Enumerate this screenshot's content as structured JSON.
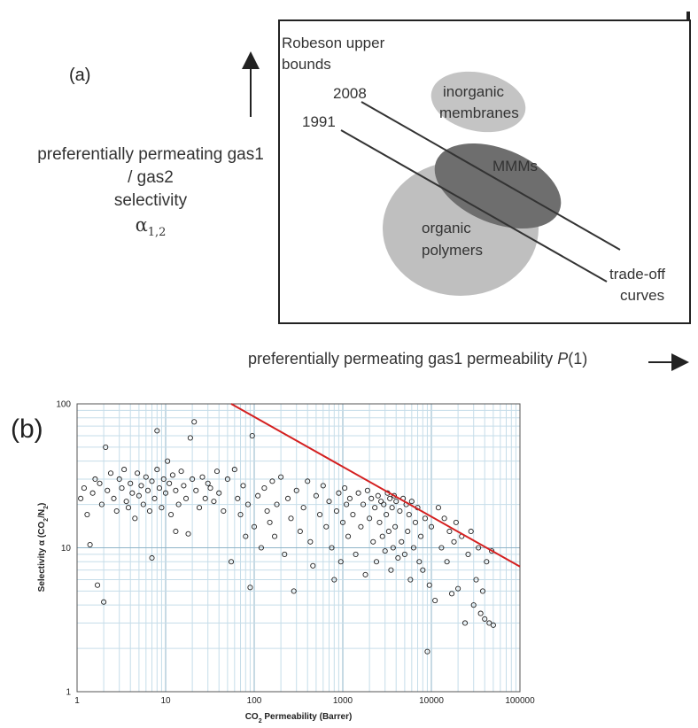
{
  "panel_a": {
    "label": "(a)",
    "ylabel_lines": [
      "preferentially permeating gas1",
      "/ gas2",
      "selectivity",
      "α",
      "1,2"
    ],
    "xlabel_prefix": "preferentially permeating gas1 permeability ",
    "xlabel_var": "P",
    "xlabel_suffix": "(1)",
    "bounds_title_1": "Robeson upper",
    "bounds_title_2": "bounds",
    "year_2008": "2008",
    "year_1991": "1991",
    "region_inorganic_1": "inorganic",
    "region_inorganic_2": "membranes",
    "region_mmm": "MMMs",
    "region_organic_1": "organic",
    "region_organic_2": "polymers",
    "tradeoff_1": "trade-off",
    "tradeoff_2": "curves",
    "colors": {
      "inorganic": "#c4c4c4",
      "mmm": "#6e6e6e",
      "organic": "#bfbfbf"
    }
  },
  "panel_b": {
    "label": "(b)"
  },
  "chart_data": {
    "type": "scatter",
    "xlabel_main": "CO",
    "xlabel_sub": "2",
    "xlabel_rest": " Permeability (Barrer)",
    "ylabel_main": "Selectivity α (CO",
    "ylabel_sub1": "2",
    "ylabel_mid": "/N",
    "ylabel_sub2": "2",
    "ylabel_end": ")",
    "x_scale": "log",
    "y_scale": "log",
    "xlim": [
      1,
      100000
    ],
    "ylim": [
      1,
      100
    ],
    "x_ticks": [
      "1",
      "10",
      "100",
      "1000",
      "10000",
      "100000"
    ],
    "y_ticks": [
      "1",
      "10",
      "100"
    ],
    "grid": true,
    "upper_bound_line": {
      "color": "#d42020",
      "points": [
        [
          55,
          100
        ],
        [
          100000,
          7.4
        ]
      ]
    },
    "points": [
      [
        1.1,
        22
      ],
      [
        1.2,
        26
      ],
      [
        1.3,
        17
      ],
      [
        1.4,
        10.5
      ],
      [
        1.5,
        24
      ],
      [
        1.6,
        30
      ],
      [
        1.7,
        5.5
      ],
      [
        1.8,
        28
      ],
      [
        1.9,
        20
      ],
      [
        2.0,
        4.2
      ],
      [
        2.1,
        50
      ],
      [
        2.2,
        25
      ],
      [
        2.4,
        33
      ],
      [
        2.6,
        22
      ],
      [
        2.8,
        18
      ],
      [
        3.0,
        30
      ],
      [
        3.2,
        26
      ],
      [
        3.4,
        35
      ],
      [
        3.6,
        21
      ],
      [
        3.8,
        19
      ],
      [
        4.0,
        28
      ],
      [
        4.2,
        24
      ],
      [
        4.5,
        16
      ],
      [
        4.8,
        33
      ],
      [
        5.0,
        23
      ],
      [
        5.3,
        27
      ],
      [
        5.6,
        20
      ],
      [
        6.0,
        31
      ],
      [
        6.3,
        25
      ],
      [
        6.6,
        18
      ],
      [
        7.0,
        8.5
      ],
      [
        7.0,
        29
      ],
      [
        7.5,
        22
      ],
      [
        8.0,
        65
      ],
      [
        8.0,
        35
      ],
      [
        8.5,
        26
      ],
      [
        9.0,
        19
      ],
      [
        9.5,
        30
      ],
      [
        10,
        24
      ],
      [
        10.5,
        40
      ],
      [
        11,
        28
      ],
      [
        11.5,
        17
      ],
      [
        12,
        32
      ],
      [
        13,
        13
      ],
      [
        13,
        25
      ],
      [
        14,
        20
      ],
      [
        15,
        34
      ],
      [
        16,
        27
      ],
      [
        17,
        22
      ],
      [
        18,
        12.5
      ],
      [
        19,
        58
      ],
      [
        20,
        30
      ],
      [
        21,
        75
      ],
      [
        22,
        25
      ],
      [
        24,
        19
      ],
      [
        26,
        31
      ],
      [
        28,
        22
      ],
      [
        30,
        28
      ],
      [
        32,
        26
      ],
      [
        35,
        21
      ],
      [
        38,
        34
      ],
      [
        40,
        24
      ],
      [
        45,
        18
      ],
      [
        50,
        30
      ],
      [
        55,
        8
      ],
      [
        60,
        35
      ],
      [
        65,
        22
      ],
      [
        70,
        17
      ],
      [
        75,
        27
      ],
      [
        80,
        12
      ],
      [
        85,
        20
      ],
      [
        90,
        5.3
      ],
      [
        95,
        60
      ],
      [
        100,
        14
      ],
      [
        110,
        23
      ],
      [
        120,
        10
      ],
      [
        130,
        26
      ],
      [
        140,
        18
      ],
      [
        150,
        15
      ],
      [
        160,
        29
      ],
      [
        170,
        12
      ],
      [
        180,
        20
      ],
      [
        200,
        31
      ],
      [
        220,
        9
      ],
      [
        240,
        22
      ],
      [
        260,
        16
      ],
      [
        280,
        5
      ],
      [
        300,
        25
      ],
      [
        330,
        13
      ],
      [
        360,
        19
      ],
      [
        400,
        29
      ],
      [
        430,
        11
      ],
      [
        460,
        7.5
      ],
      [
        500,
        23
      ],
      [
        550,
        17
      ],
      [
        600,
        27
      ],
      [
        650,
        14
      ],
      [
        700,
        21
      ],
      [
        750,
        10
      ],
      [
        800,
        6
      ],
      [
        850,
        18
      ],
      [
        900,
        24
      ],
      [
        950,
        8
      ],
      [
        1000,
        15
      ],
      [
        1050,
        26
      ],
      [
        1100,
        20
      ],
      [
        1150,
        12
      ],
      [
        1200,
        22
      ],
      [
        1300,
        17
      ],
      [
        1400,
        9
      ],
      [
        1500,
        24
      ],
      [
        1600,
        14
      ],
      [
        1700,
        20
      ],
      [
        1800,
        6.5
      ],
      [
        1900,
        25
      ],
      [
        2000,
        16
      ],
      [
        2100,
        22
      ],
      [
        2200,
        11
      ],
      [
        2300,
        19
      ],
      [
        2400,
        8
      ],
      [
        2500,
        23
      ],
      [
        2600,
        15
      ],
      [
        2700,
        21
      ],
      [
        2800,
        12
      ],
      [
        2900,
        20
      ],
      [
        3000,
        9.5
      ],
      [
        3100,
        17
      ],
      [
        3200,
        24
      ],
      [
        3300,
        13
      ],
      [
        3400,
        22
      ],
      [
        3500,
        7
      ],
      [
        3600,
        19
      ],
      [
        3700,
        10
      ],
      [
        3800,
        23
      ],
      [
        3900,
        14
      ],
      [
        4000,
        21
      ],
      [
        4200,
        8.5
      ],
      [
        4400,
        18
      ],
      [
        4600,
        11
      ],
      [
        4800,
        22
      ],
      [
        5000,
        9
      ],
      [
        5200,
        20
      ],
      [
        5400,
        13
      ],
      [
        5600,
        17
      ],
      [
        5800,
        6
      ],
      [
        6000,
        21
      ],
      [
        6300,
        10
      ],
      [
        6600,
        15
      ],
      [
        7000,
        19
      ],
      [
        7300,
        8
      ],
      [
        7600,
        12
      ],
      [
        8000,
        7
      ],
      [
        8500,
        16
      ],
      [
        9000,
        1.9
      ],
      [
        9500,
        5.5
      ],
      [
        10000,
        14
      ],
      [
        11000,
        4.3
      ],
      [
        12000,
        19
      ],
      [
        13000,
        10
      ],
      [
        14000,
        16
      ],
      [
        15000,
        8
      ],
      [
        16000,
        13
      ],
      [
        17000,
        4.8
      ],
      [
        18000,
        11
      ],
      [
        19000,
        15
      ],
      [
        20000,
        5.2
      ],
      [
        22000,
        12
      ],
      [
        24000,
        3
      ],
      [
        26000,
        9
      ],
      [
        28000,
        13
      ],
      [
        30000,
        4
      ],
      [
        32000,
        6
      ],
      [
        34000,
        10
      ],
      [
        36000,
        3.5
      ],
      [
        38000,
        5
      ],
      [
        40000,
        3.2
      ],
      [
        42000,
        8
      ],
      [
        45000,
        3
      ],
      [
        48000,
        9.5
      ],
      [
        50000,
        2.9
      ]
    ]
  }
}
